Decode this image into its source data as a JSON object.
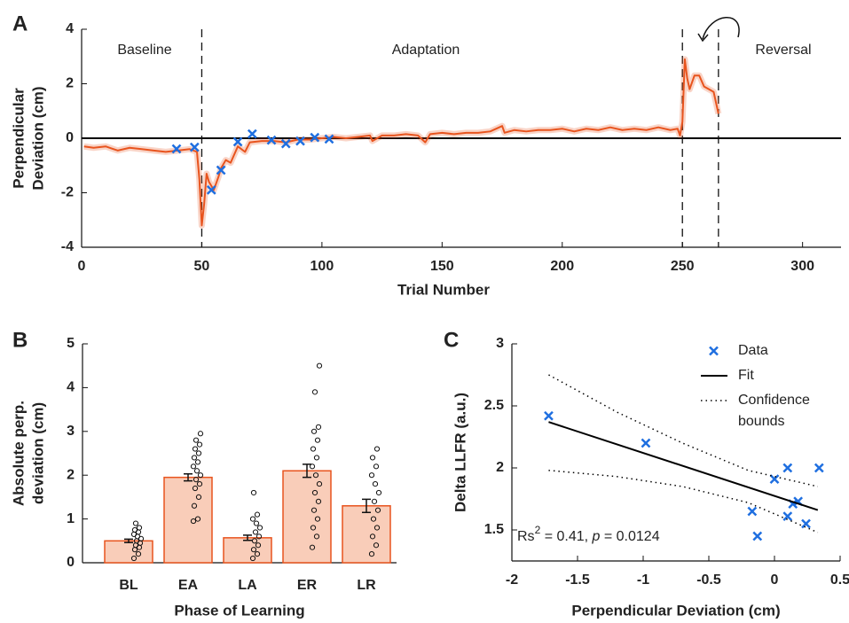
{
  "chart_data": [
    {
      "type": "line",
      "panel_label": "A",
      "xlabel": "Trial Number",
      "ylabel": [
        "Perpendicular",
        "Deviation (cm)"
      ],
      "xlim": [
        0,
        316
      ],
      "ylim": [
        -4,
        4
      ],
      "xticks": [
        0,
        50,
        100,
        150,
        200,
        250,
        300
      ],
      "yticks": [
        -4,
        -2,
        0,
        2,
        4
      ],
      "reference_line": 0,
      "phase_boundaries": [
        50,
        250,
        265
      ],
      "annotations": [
        "Baseline",
        "Adaptation",
        "Reversal"
      ],
      "series": [
        {
          "style": "line",
          "color": "#e8541e",
          "x": [
            1,
            5,
            10,
            15,
            20,
            25,
            30,
            35,
            40,
            45,
            48,
            49,
            50,
            51,
            52,
            53,
            55,
            57,
            58,
            60,
            62,
            65,
            68,
            70,
            75,
            80,
            85,
            90,
            95,
            100,
            105,
            110,
            115,
            120,
            121,
            125,
            130,
            135,
            140,
            143,
            145,
            150,
            155,
            160,
            165,
            170,
            175,
            176,
            180,
            185,
            190,
            195,
            200,
            205,
            210,
            215,
            220,
            225,
            230,
            235,
            240,
            245,
            248,
            249,
            250,
            251,
            252,
            253,
            255,
            257,
            259,
            261,
            263,
            265
          ],
          "values": [
            -0.3,
            -0.35,
            -0.3,
            -0.45,
            -0.35,
            -0.4,
            -0.45,
            -0.5,
            -0.45,
            -0.4,
            -0.5,
            -1.5,
            -3.2,
            -2.4,
            -1.3,
            -1.6,
            -1.9,
            -1.4,
            -1.1,
            -0.8,
            -0.9,
            -0.3,
            -0.5,
            -0.15,
            -0.1,
            -0.1,
            -0.15,
            -0.05,
            -0.05,
            0,
            0.05,
            0,
            0.05,
            0.1,
            -0.1,
            0.1,
            0.1,
            0.15,
            0.1,
            -0.15,
            0.15,
            0.2,
            0.15,
            0.2,
            0.2,
            0.25,
            0.45,
            0.2,
            0.3,
            0.25,
            0.3,
            0.3,
            0.35,
            0.25,
            0.35,
            0.3,
            0.4,
            0.3,
            0.35,
            0.3,
            0.4,
            0.3,
            0.35,
            0.1,
            0.6,
            2.9,
            2.2,
            1.8,
            2.3,
            2.3,
            1.9,
            1.8,
            1.7,
            0.9
          ]
        },
        {
          "style": "marker",
          "color": "#1f6fe0",
          "x": [
            39.5,
            47,
            54,
            58,
            65,
            71,
            79,
            85,
            91,
            97,
            103
          ],
          "values": [
            -0.39,
            -0.33,
            -1.9,
            -1.17,
            -0.13,
            0.16,
            -0.07,
            -0.2,
            -0.1,
            0.03,
            -0.03
          ]
        }
      ]
    },
    {
      "type": "bar",
      "panel_label": "B",
      "xlabel": "Phase of Learning",
      "ylabel": [
        "Absolute perp.",
        "deviation (cm)"
      ],
      "ylim": [
        0,
        5
      ],
      "yticks": [
        0,
        1,
        2,
        3,
        4,
        5
      ],
      "color": "#f9cdb9",
      "edge_color": "#e8541e",
      "categories": [
        "BL",
        "EA",
        "LA",
        "ER",
        "LR"
      ],
      "values": [
        0.5,
        1.95,
        0.57,
        2.1,
        1.3
      ],
      "errors": [
        0.04,
        0.08,
        0.06,
        0.15,
        0.15
      ],
      "points": [
        [
          0.1,
          0.2,
          0.3,
          0.35,
          0.4,
          0.45,
          0.5,
          0.55,
          0.6,
          0.65,
          0.7,
          0.75,
          0.8,
          0.9
        ],
        [
          0.95,
          1.0,
          1.3,
          1.5,
          1.7,
          1.8,
          1.9,
          2.0,
          2.1,
          2.2,
          2.3,
          2.4,
          2.5,
          2.6,
          2.7,
          2.8,
          2.95
        ],
        [
          0.1,
          0.2,
          0.3,
          0.4,
          0.5,
          0.6,
          0.7,
          0.8,
          0.9,
          1.0,
          1.1,
          1.6
        ],
        [
          0.35,
          0.6,
          0.8,
          1.0,
          1.2,
          1.4,
          1.6,
          1.8,
          2.0,
          2.2,
          2.4,
          2.6,
          2.8,
          3.0,
          3.1,
          3.9,
          4.5
        ],
        [
          0.2,
          0.4,
          0.6,
          0.8,
          1.0,
          1.2,
          1.4,
          1.6,
          1.8,
          2.0,
          2.2,
          2.4,
          2.6
        ]
      ]
    },
    {
      "type": "scatter",
      "panel_label": "C",
      "xlabel": "Perpendicular Deviation (cm)",
      "ylabel": [
        "Delta LLFR (a.u.)"
      ],
      "xlim": [
        -2,
        0.5
      ],
      "ylim": [
        1.25,
        3
      ],
      "xticks": [
        -2,
        -1.5,
        -1,
        -0.5,
        0,
        0.5
      ],
      "yticks": [
        1.5,
        2,
        2.5,
        3
      ],
      "annotation": [
        "Rs",
        "2",
        " = 0.41, ",
        "p",
        " = 0.0124"
      ],
      "series": [
        {
          "name": "Data",
          "style": "marker",
          "color": "#1f6fe0",
          "x": [
            -1.72,
            -0.98,
            -0.17,
            -0.13,
            0,
            0.1,
            0.1,
            0.14,
            0.18,
            0.24,
            0.34
          ],
          "values": [
            2.42,
            2.2,
            1.65,
            1.45,
            1.91,
            2.0,
            1.61,
            1.71,
            1.73,
            1.55,
            2.0
          ]
        },
        {
          "name": "Fit",
          "style": "solid",
          "color": "#000000",
          "x": [
            -1.72,
            0.33
          ],
          "values": [
            2.37,
            1.66
          ]
        },
        {
          "name": "Confidence bounds",
          "style": "dotted",
          "color": "#000000",
          "x": [
            -1.72,
            -1.2,
            -0.7,
            -0.2,
            0.33
          ],
          "values": [
            2.75,
            2.45,
            2.2,
            1.98,
            1.85
          ]
        },
        {
          "style": "dotted",
          "color": "#000000",
          "x": [
            -1.72,
            -1.2,
            -0.7,
            -0.2,
            0.33
          ],
          "values": [
            1.98,
            1.93,
            1.85,
            1.72,
            1.48
          ]
        }
      ]
    }
  ]
}
